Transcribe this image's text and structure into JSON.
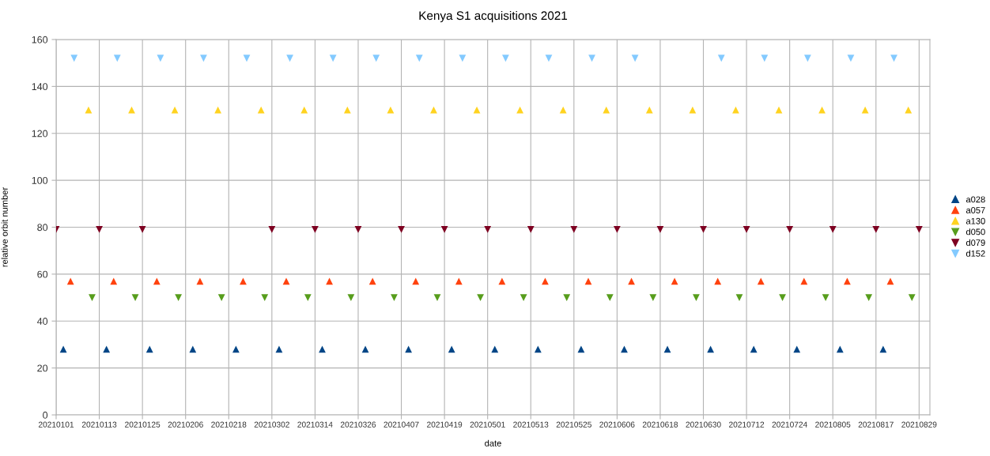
{
  "chart_data": {
    "type": "scatter",
    "title": "Kenya S1 acquisitions 2021",
    "xlabel": "date",
    "ylabel": "relative orbit number",
    "xlim": [
      "2021-01-01",
      "2021-09-01"
    ],
    "ylim": [
      0,
      160
    ],
    "yticks": [
      0,
      20,
      40,
      60,
      80,
      100,
      120,
      140,
      160
    ],
    "xticks": [
      {
        "value": "2021-01-01",
        "label": "20210101"
      },
      {
        "value": "2021-01-13",
        "label": "20210113"
      },
      {
        "value": "2021-01-25",
        "label": "20210125"
      },
      {
        "value": "2021-02-06",
        "label": "20210206"
      },
      {
        "value": "2021-02-18",
        "label": "20210218"
      },
      {
        "value": "2021-03-02",
        "label": "20210302"
      },
      {
        "value": "2021-03-14",
        "label": "20210314"
      },
      {
        "value": "2021-03-26",
        "label": "20210326"
      },
      {
        "value": "2021-04-07",
        "label": "20210407"
      },
      {
        "value": "2021-04-19",
        "label": "20210419"
      },
      {
        "value": "2021-05-01",
        "label": "20210501"
      },
      {
        "value": "2021-05-13",
        "label": "20210513"
      },
      {
        "value": "2021-05-25",
        "label": "20210525"
      },
      {
        "value": "2021-06-06",
        "label": "20210606"
      },
      {
        "value": "2021-06-18",
        "label": "20210618"
      },
      {
        "value": "2021-06-30",
        "label": "20210630"
      },
      {
        "value": "2021-07-12",
        "label": "20210712"
      },
      {
        "value": "2021-07-24",
        "label": "20210724"
      },
      {
        "value": "2021-08-05",
        "label": "20210805"
      },
      {
        "value": "2021-08-17",
        "label": "20210817"
      },
      {
        "value": "2021-08-29",
        "label": "20210829"
      }
    ],
    "grid": true,
    "legend": "right",
    "series": [
      {
        "name": "a028",
        "color": "#004586",
        "marker": "triangle",
        "x": [
          "2021-01-03",
          "2021-01-15",
          "2021-01-27",
          "2021-02-08",
          "2021-02-20",
          "2021-03-04",
          "2021-03-16",
          "2021-03-28",
          "2021-04-09",
          "2021-04-21",
          "2021-05-03",
          "2021-05-15",
          "2021-05-27",
          "2021-06-08",
          "2021-06-20",
          "2021-07-02",
          "2021-07-14",
          "2021-07-26",
          "2021-08-07",
          "2021-08-19"
        ],
        "values": [
          28,
          28,
          28,
          28,
          28,
          28,
          28,
          28,
          28,
          28,
          28,
          28,
          28,
          28,
          28,
          28,
          28,
          28,
          28,
          28
        ]
      },
      {
        "name": "a057",
        "color": "#ff420e",
        "marker": "triangle",
        "x": [
          "2021-01-05",
          "2021-01-17",
          "2021-01-29",
          "2021-02-10",
          "2021-02-22",
          "2021-03-06",
          "2021-03-18",
          "2021-03-30",
          "2021-04-11",
          "2021-04-23",
          "2021-05-05",
          "2021-05-17",
          "2021-05-29",
          "2021-06-10",
          "2021-06-22",
          "2021-07-04",
          "2021-07-16",
          "2021-07-28",
          "2021-08-09",
          "2021-08-21"
        ],
        "values": [
          57,
          57,
          57,
          57,
          57,
          57,
          57,
          57,
          57,
          57,
          57,
          57,
          57,
          57,
          57,
          57,
          57,
          57,
          57,
          57
        ]
      },
      {
        "name": "a130",
        "color": "#ffd320",
        "marker": "triangle",
        "x": [
          "2021-01-10",
          "2021-01-22",
          "2021-02-03",
          "2021-02-15",
          "2021-02-27",
          "2021-03-11",
          "2021-03-23",
          "2021-04-04",
          "2021-04-16",
          "2021-04-28",
          "2021-05-10",
          "2021-05-22",
          "2021-06-03",
          "2021-06-15",
          "2021-06-27",
          "2021-07-09",
          "2021-07-21",
          "2021-08-02",
          "2021-08-14",
          "2021-08-26"
        ],
        "values": [
          130,
          130,
          130,
          130,
          130,
          130,
          130,
          130,
          130,
          130,
          130,
          130,
          130,
          130,
          130,
          130,
          130,
          130,
          130,
          130
        ]
      },
      {
        "name": "d050",
        "color": "#579d1c",
        "marker": "triangle_down",
        "x": [
          "2021-01-11",
          "2021-01-23",
          "2021-02-04",
          "2021-02-16",
          "2021-02-28",
          "2021-03-12",
          "2021-03-24",
          "2021-04-05",
          "2021-04-17",
          "2021-04-29",
          "2021-05-11",
          "2021-05-23",
          "2021-06-04",
          "2021-06-16",
          "2021-06-28",
          "2021-07-10",
          "2021-07-22",
          "2021-08-03",
          "2021-08-15",
          "2021-08-27"
        ],
        "values": [
          50,
          50,
          50,
          50,
          50,
          50,
          50,
          50,
          50,
          50,
          50,
          50,
          50,
          50,
          50,
          50,
          50,
          50,
          50,
          50
        ]
      },
      {
        "name": "d079",
        "color": "#7e0021",
        "marker": "triangle_down",
        "x": [
          "2021-01-01",
          "2021-01-13",
          "2021-01-25",
          "2021-03-02",
          "2021-03-14",
          "2021-03-26",
          "2021-04-07",
          "2021-04-19",
          "2021-05-01",
          "2021-05-13",
          "2021-05-25",
          "2021-06-06",
          "2021-06-18",
          "2021-06-30",
          "2021-07-12",
          "2021-07-24",
          "2021-08-05",
          "2021-08-17",
          "2021-08-29"
        ],
        "values": [
          79,
          79,
          79,
          79,
          79,
          79,
          79,
          79,
          79,
          79,
          79,
          79,
          79,
          79,
          79,
          79,
          79,
          79,
          79
        ]
      },
      {
        "name": "d152",
        "color": "#83caff",
        "marker": "triangle_down",
        "x": [
          "2021-01-06",
          "2021-01-18",
          "2021-01-30",
          "2021-02-11",
          "2021-02-23",
          "2021-03-07",
          "2021-03-19",
          "2021-03-31",
          "2021-04-12",
          "2021-04-24",
          "2021-05-06",
          "2021-05-18",
          "2021-05-30",
          "2021-06-11",
          "2021-07-05",
          "2021-07-17",
          "2021-07-29",
          "2021-08-10",
          "2021-08-22"
        ],
        "values": [
          152,
          152,
          152,
          152,
          152,
          152,
          152,
          152,
          152,
          152,
          152,
          152,
          152,
          152,
          152,
          152,
          152,
          152,
          152
        ]
      }
    ]
  }
}
